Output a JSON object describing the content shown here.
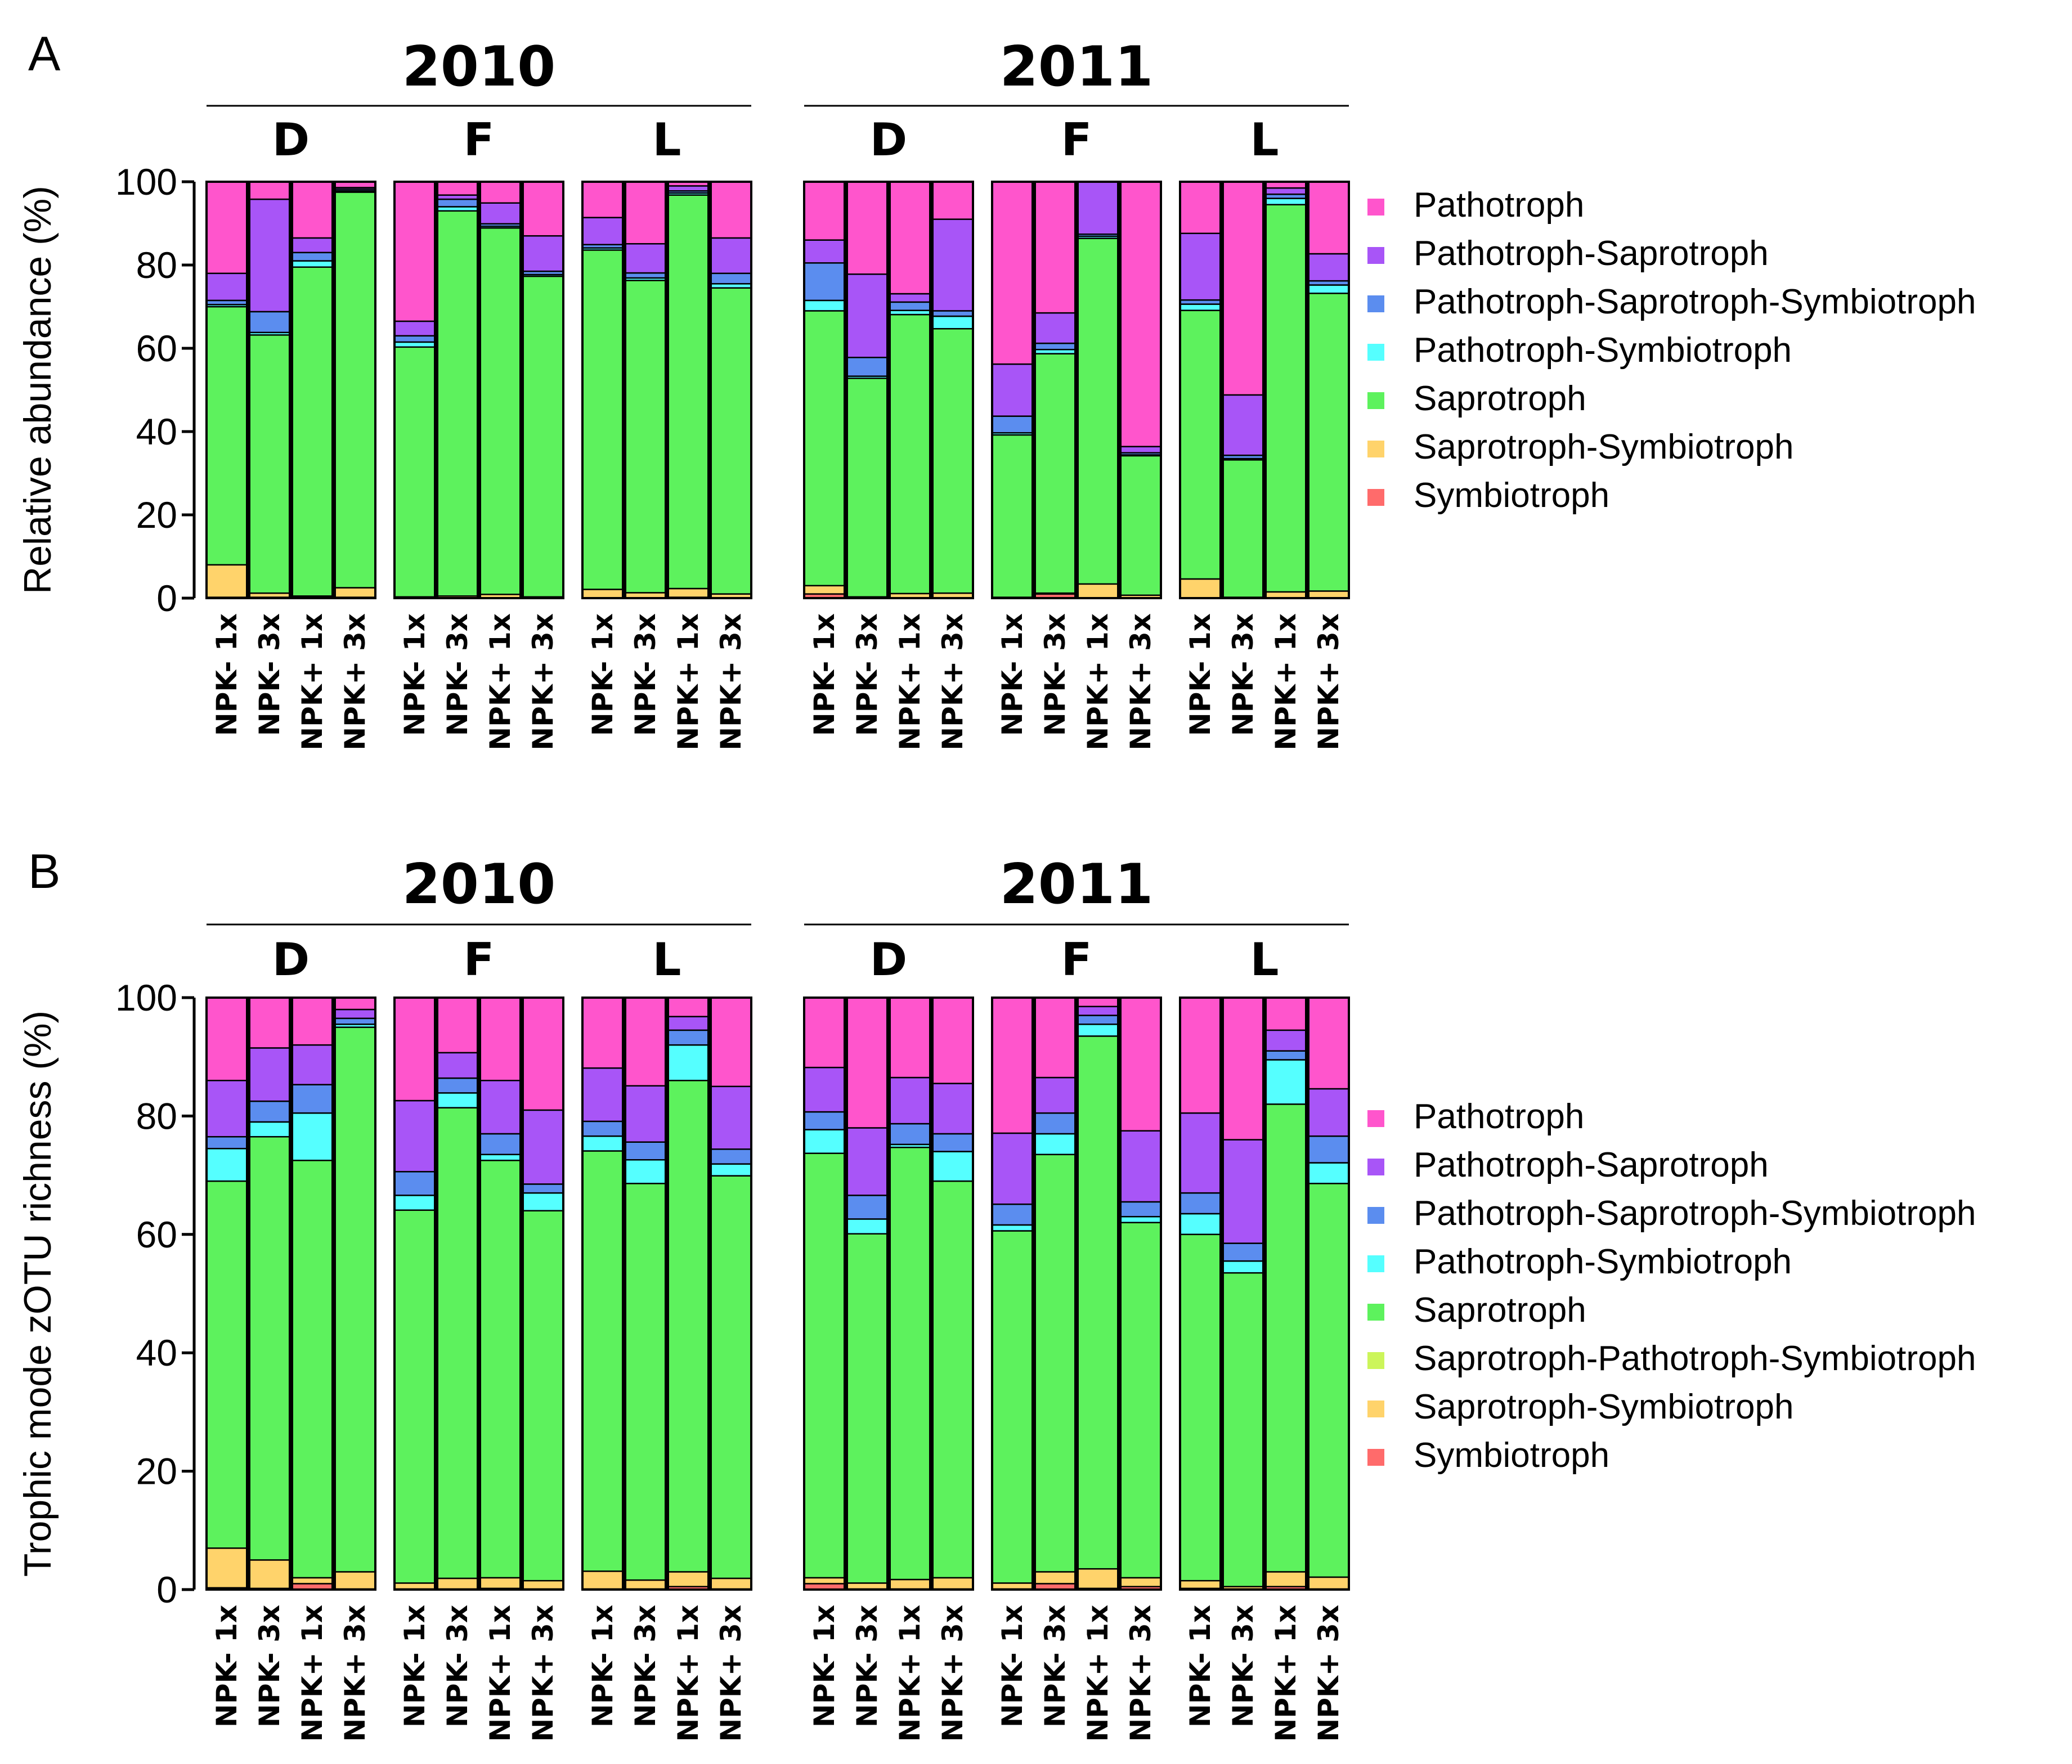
{
  "colors": {
    "Pathotroph": "#ff55cc",
    "Pathotroph-Saprotroph": "#a855f7",
    "Pathotroph-Saprotroph-Symbiotroph": "#5b8def",
    "Pathotroph-Symbiotroph": "#55ffff",
    "Saprotroph": "#5df25d",
    "Saprotroph-Pathotroph-Symbiotroph": "#ccf55a",
    "Saprotroph-Symbiotroph": "#ffd36b",
    "Symbiotroph": "#ff6b6b"
  },
  "chart_data": [
    {
      "type": "bar",
      "stacked": true,
      "panel_label": "A",
      "ylabel": "Relative abundance (%)",
      "ylim": [
        0,
        100
      ],
      "yticks": [
        "0",
        "20",
        "40",
        "60",
        "80",
        "100"
      ],
      "years": [
        {
          "label": "2010",
          "groups": [
            "D",
            "F",
            "L"
          ]
        },
        {
          "label": "2011",
          "groups": [
            "D",
            "F",
            "L"
          ]
        }
      ],
      "categories": [
        "NPK- 1x",
        "NPK- 3x",
        "NPK+ 1x",
        "NPK+ 3x"
      ],
      "legend": [
        "Pathotroph",
        "Pathotroph-Saprotroph",
        "Pathotroph-Saprotroph-Symbiotroph",
        "Pathotroph-Symbiotroph",
        "Saprotroph",
        "Saprotroph-Symbiotroph",
        "Symbiotroph"
      ],
      "stack_order": [
        "Symbiotroph",
        "Saprotroph-Symbiotroph",
        "Saprotroph",
        "Pathotroph-Symbiotroph",
        "Pathotroph-Saprotroph-Symbiotroph",
        "Pathotroph-Saprotroph",
        "Pathotroph"
      ],
      "bars": [
        [
          0.2,
          7.8,
          62.0,
          0.5,
          1.0,
          6.5,
          22.0
        ],
        [
          0.2,
          1.0,
          62.0,
          0.6,
          5.0,
          27.0,
          4.2
        ],
        [
          0.2,
          0.3,
          79.0,
          1.5,
          2.0,
          3.5,
          13.5
        ],
        [
          0.2,
          2.3,
          95.0,
          0.3,
          0.4,
          0.4,
          1.4
        ],
        [
          0.1,
          0.2,
          60.0,
          1.2,
          1.5,
          3.5,
          33.5
        ],
        [
          0.1,
          0.4,
          92.5,
          1.0,
          1.8,
          1.0,
          3.2
        ],
        [
          0.1,
          0.8,
          88.0,
          0.4,
          0.6,
          5.0,
          5.1
        ],
        [
          0.1,
          0.2,
          77.0,
          0.4,
          0.8,
          8.5,
          13.0
        ],
        [
          0.1,
          2.0,
          81.5,
          0.5,
          0.8,
          6.5,
          8.6
        ],
        [
          0.1,
          1.2,
          75.0,
          0.6,
          1.2,
          7.0,
          14.9
        ],
        [
          0.2,
          2.1,
          94.5,
          0.5,
          0.5,
          1.2,
          1.0
        ],
        [
          0.1,
          0.9,
          73.5,
          1.0,
          2.5,
          8.5,
          13.5
        ],
        [
          1.0,
          2.0,
          66.0,
          2.5,
          9.0,
          5.5,
          14.0
        ],
        [
          0.1,
          0.2,
          52.5,
          0.5,
          4.5,
          20.0,
          22.2
        ],
        [
          0.1,
          1.0,
          67.0,
          1.0,
          2.0,
          2.0,
          26.9
        ],
        [
          0.1,
          1.1,
          63.5,
          3.0,
          1.3,
          22.0,
          9.0
        ],
        [
          0.1,
          0.1,
          39.0,
          0.5,
          4.0,
          12.5,
          43.8
        ],
        [
          1.0,
          0.2,
          57.5,
          1.0,
          1.5,
          7.3,
          31.5
        ],
        [
          0.1,
          3.3,
          83.0,
          0.5,
          0.5,
          12.6,
          0.0
        ],
        [
          0.1,
          0.6,
          33.5,
          0.2,
          0.5,
          1.5,
          63.6
        ],
        [
          0.1,
          4.5,
          64.5,
          1.5,
          1.0,
          16.0,
          12.4
        ],
        [
          0.1,
          0.1,
          33.0,
          0.3,
          0.8,
          14.5,
          51.2
        ],
        [
          0.1,
          1.4,
          93.0,
          1.5,
          1.0,
          1.5,
          1.5
        ],
        [
          0.1,
          1.6,
          71.5,
          2.0,
          1.0,
          6.5,
          17.3
        ]
      ]
    },
    {
      "type": "bar",
      "stacked": true,
      "panel_label": "B",
      "ylabel": "Trophic mode zOTU richness (%)",
      "ylim": [
        0,
        100
      ],
      "yticks": [
        "0",
        "20",
        "40",
        "60",
        "80",
        "100"
      ],
      "years": [
        {
          "label": "2010",
          "groups": [
            "D",
            "F",
            "L"
          ]
        },
        {
          "label": "2011",
          "groups": [
            "D",
            "F",
            "L"
          ]
        }
      ],
      "categories": [
        "NPK- 1x",
        "NPK- 3x",
        "NPK+ 1x",
        "NPK+ 3x"
      ],
      "legend": [
        "Pathotroph",
        "Pathotroph-Saprotroph",
        "Pathotroph-Saprotroph-Symbiotroph",
        "Pathotroph-Symbiotroph",
        "Saprotroph",
        "Saprotroph-Pathotroph-Symbiotroph",
        "Saprotroph-Symbiotroph",
        "Symbiotroph"
      ],
      "stack_order": [
        "Symbiotroph",
        "Saprotroph-Symbiotroph",
        "Saprotroph-Pathotroph-Symbiotroph",
        "Saprotroph",
        "Pathotroph-Symbiotroph",
        "Pathotroph-Saprotroph-Symbiotroph",
        "Pathotroph-Saprotroph",
        "Pathotroph"
      ],
      "bars": [
        [
          0.3,
          6.7,
          0.0,
          62.0,
          5.5,
          2.0,
          9.5,
          14.0
        ],
        [
          0.2,
          4.8,
          0.0,
          71.5,
          2.5,
          3.5,
          9.0,
          8.5
        ],
        [
          1.0,
          1.0,
          0.0,
          70.5,
          8.0,
          4.8,
          6.7,
          8.0
        ],
        [
          0.1,
          2.9,
          0.0,
          92.0,
          0.5,
          1.0,
          1.5,
          2.0
        ],
        [
          0.1,
          1.0,
          0.0,
          63.0,
          2.5,
          4.0,
          12.0,
          17.4
        ],
        [
          0.1,
          1.8,
          0.0,
          79.5,
          2.5,
          2.5,
          4.3,
          9.3
        ],
        [
          0.2,
          1.8,
          0.0,
          70.5,
          1.0,
          3.5,
          9.0,
          14.0
        ],
        [
          0.1,
          1.4,
          0.0,
          62.5,
          3.0,
          1.5,
          12.5,
          19.0
        ],
        [
          0.1,
          3.0,
          0.0,
          71.0,
          2.5,
          2.5,
          9.0,
          11.9
        ],
        [
          0.1,
          1.5,
          0.0,
          67.0,
          4.0,
          3.0,
          9.5,
          14.9
        ],
        [
          0.5,
          2.5,
          0.0,
          83.0,
          6.0,
          2.5,
          2.3,
          3.2
        ],
        [
          0.1,
          1.8,
          0.0,
          68.0,
          2.0,
          2.5,
          10.6,
          15.0
        ],
        [
          1.0,
          1.0,
          0.0,
          71.7,
          4.0,
          3.0,
          7.5,
          11.8
        ],
        [
          0.1,
          1.0,
          0.0,
          59.0,
          2.5,
          4.0,
          11.4,
          22.0
        ],
        [
          0.1,
          1.6,
          0.0,
          73.0,
          0.5,
          3.5,
          7.8,
          13.5
        ],
        [
          0.1,
          1.9,
          0.0,
          67.0,
          5.0,
          3.0,
          8.5,
          14.5
        ],
        [
          0.1,
          1.0,
          0.0,
          59.5,
          1.0,
          3.5,
          12.0,
          22.9
        ],
        [
          1.0,
          2.0,
          0.0,
          70.5,
          3.5,
          3.5,
          6.0,
          13.5
        ],
        [
          0.2,
          3.3,
          0.0,
          90.0,
          2.0,
          1.5,
          1.5,
          1.5
        ],
        [
          0.5,
          1.5,
          0.0,
          60.0,
          1.0,
          2.5,
          12.0,
          22.5
        ],
        [
          0.2,
          1.3,
          0.0,
          58.5,
          3.5,
          3.5,
          13.5,
          19.5
        ],
        [
          0.1,
          0.4,
          0.0,
          53.0,
          2.0,
          3.0,
          17.5,
          24.0
        ],
        [
          0.5,
          2.5,
          0.0,
          79.0,
          7.5,
          1.5,
          3.5,
          5.5
        ],
        [
          0.1,
          2.0,
          0.0,
          66.5,
          3.5,
          4.5,
          8.0,
          15.4
        ]
      ]
    }
  ]
}
